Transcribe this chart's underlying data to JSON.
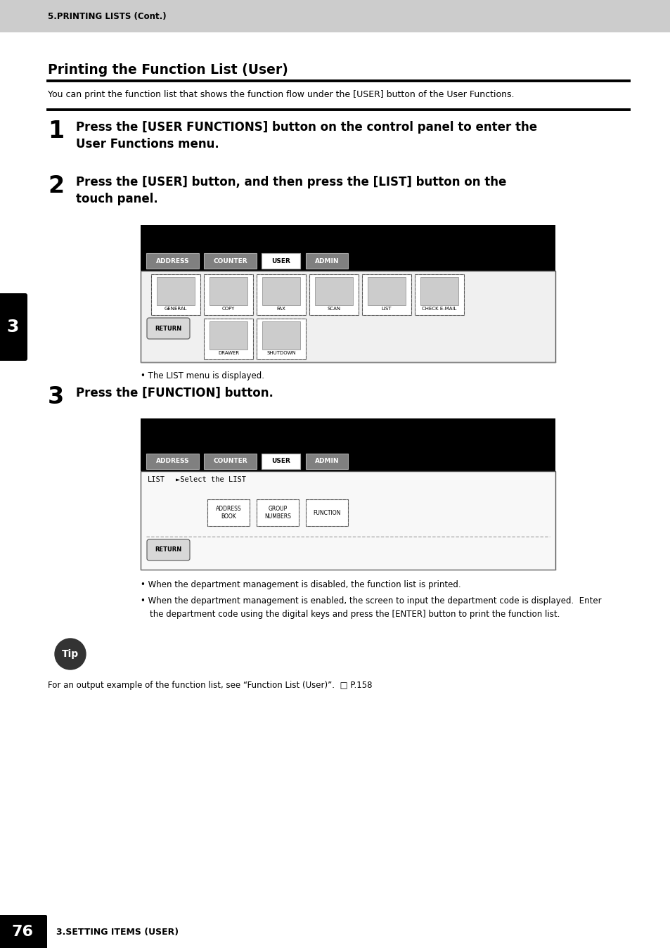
{
  "header_bg": "#cccccc",
  "header_text": "5.PRINTING LISTS (Cont.)",
  "page_bg": "#ffffff",
  "title": "Printing the Function List (User)",
  "intro_text": "You can print the function list that shows the function flow under the [USER] button of the User Functions.",
  "step1_num": "1",
  "step1_text": "Press the [USER FUNCTIONS] button on the control panel to enter the\nUser Functions menu.",
  "step2_num": "2",
  "step2_text": "Press the [USER] button, and then press the [LIST] button on the\ntouch panel.",
  "step3_num": "3",
  "step3_text": "Press the [FUNCTION] button.",
  "bullet1": "The LIST menu is displayed.",
  "bullet2a": "When the department management is disabled, the function list is printed.",
  "bullet2b": "When the department management is enabled, the screen to input the department code is displayed.  Enter\nthe department code using the digital keys and press the [ENTER] button to print the function list.",
  "tip_text": "For an output example of the function list, see “Function List (User)”.  □ P.158",
  "footer_page": "76",
  "footer_text": "3.SETTING ITEMS (USER)",
  "tab_labels": [
    "ADDRESS",
    "COUNTER",
    "USER",
    "ADMIN"
  ],
  "icons1": [
    "GENERAL",
    "COPY",
    "FAX",
    "SCAN",
    "LIST",
    "CHECK E-MAIL"
  ],
  "icons2": [
    "DRAWER",
    "SHUTDOWN"
  ],
  "btn_labels": [
    "ADDRESS\nBOOK",
    "GROUP\nNUMBERS",
    "FUNCTION"
  ]
}
